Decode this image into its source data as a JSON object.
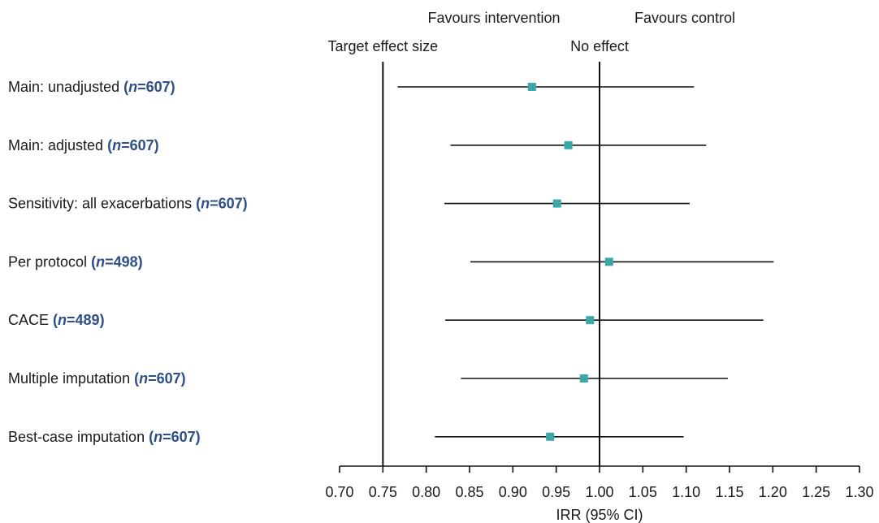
{
  "chart_data": {
    "type": "forest",
    "header_left": "Favours intervention",
    "header_right": "Favours control",
    "reference_lines": [
      {
        "label": "Target effect size",
        "value": 0.75
      },
      {
        "label": "No effect",
        "value": 1.0
      }
    ],
    "xlabel": "IRR (95% CI)",
    "xlim": [
      0.7,
      1.3
    ],
    "xticks": [
      "0.70",
      "0.75",
      "0.80",
      "0.85",
      "0.90",
      "0.95",
      "1.00",
      "1.05",
      "1.10",
      "1.15",
      "1.20",
      "1.25",
      "1.30"
    ],
    "rows": [
      {
        "label": "Main: unadjusted",
        "n": "607",
        "estimate": 0.922,
        "lower": 0.767,
        "upper": 1.109
      },
      {
        "label": "Main: adjusted",
        "n": "607",
        "estimate": 0.964,
        "lower": 0.828,
        "upper": 1.123
      },
      {
        "label": "Sensitivity: all exacerbations",
        "n": "607",
        "estimate": 0.951,
        "lower": 0.821,
        "upper": 1.104
      },
      {
        "label": "Per protocol",
        "n": "498",
        "estimate": 1.011,
        "lower": 0.851,
        "upper": 1.201
      },
      {
        "label": "CACE",
        "n": "489",
        "estimate": 0.989,
        "lower": 0.822,
        "upper": 1.189
      },
      {
        "label": "Multiple imputation",
        "n": "607",
        "estimate": 0.982,
        "lower": 0.84,
        "upper": 1.148
      },
      {
        "label": "Best-case imputation",
        "n": "607",
        "estimate": 0.943,
        "lower": 0.81,
        "upper": 1.097
      }
    ],
    "marker_color": "#3aa8a8",
    "n_color": "#2d4f85"
  }
}
